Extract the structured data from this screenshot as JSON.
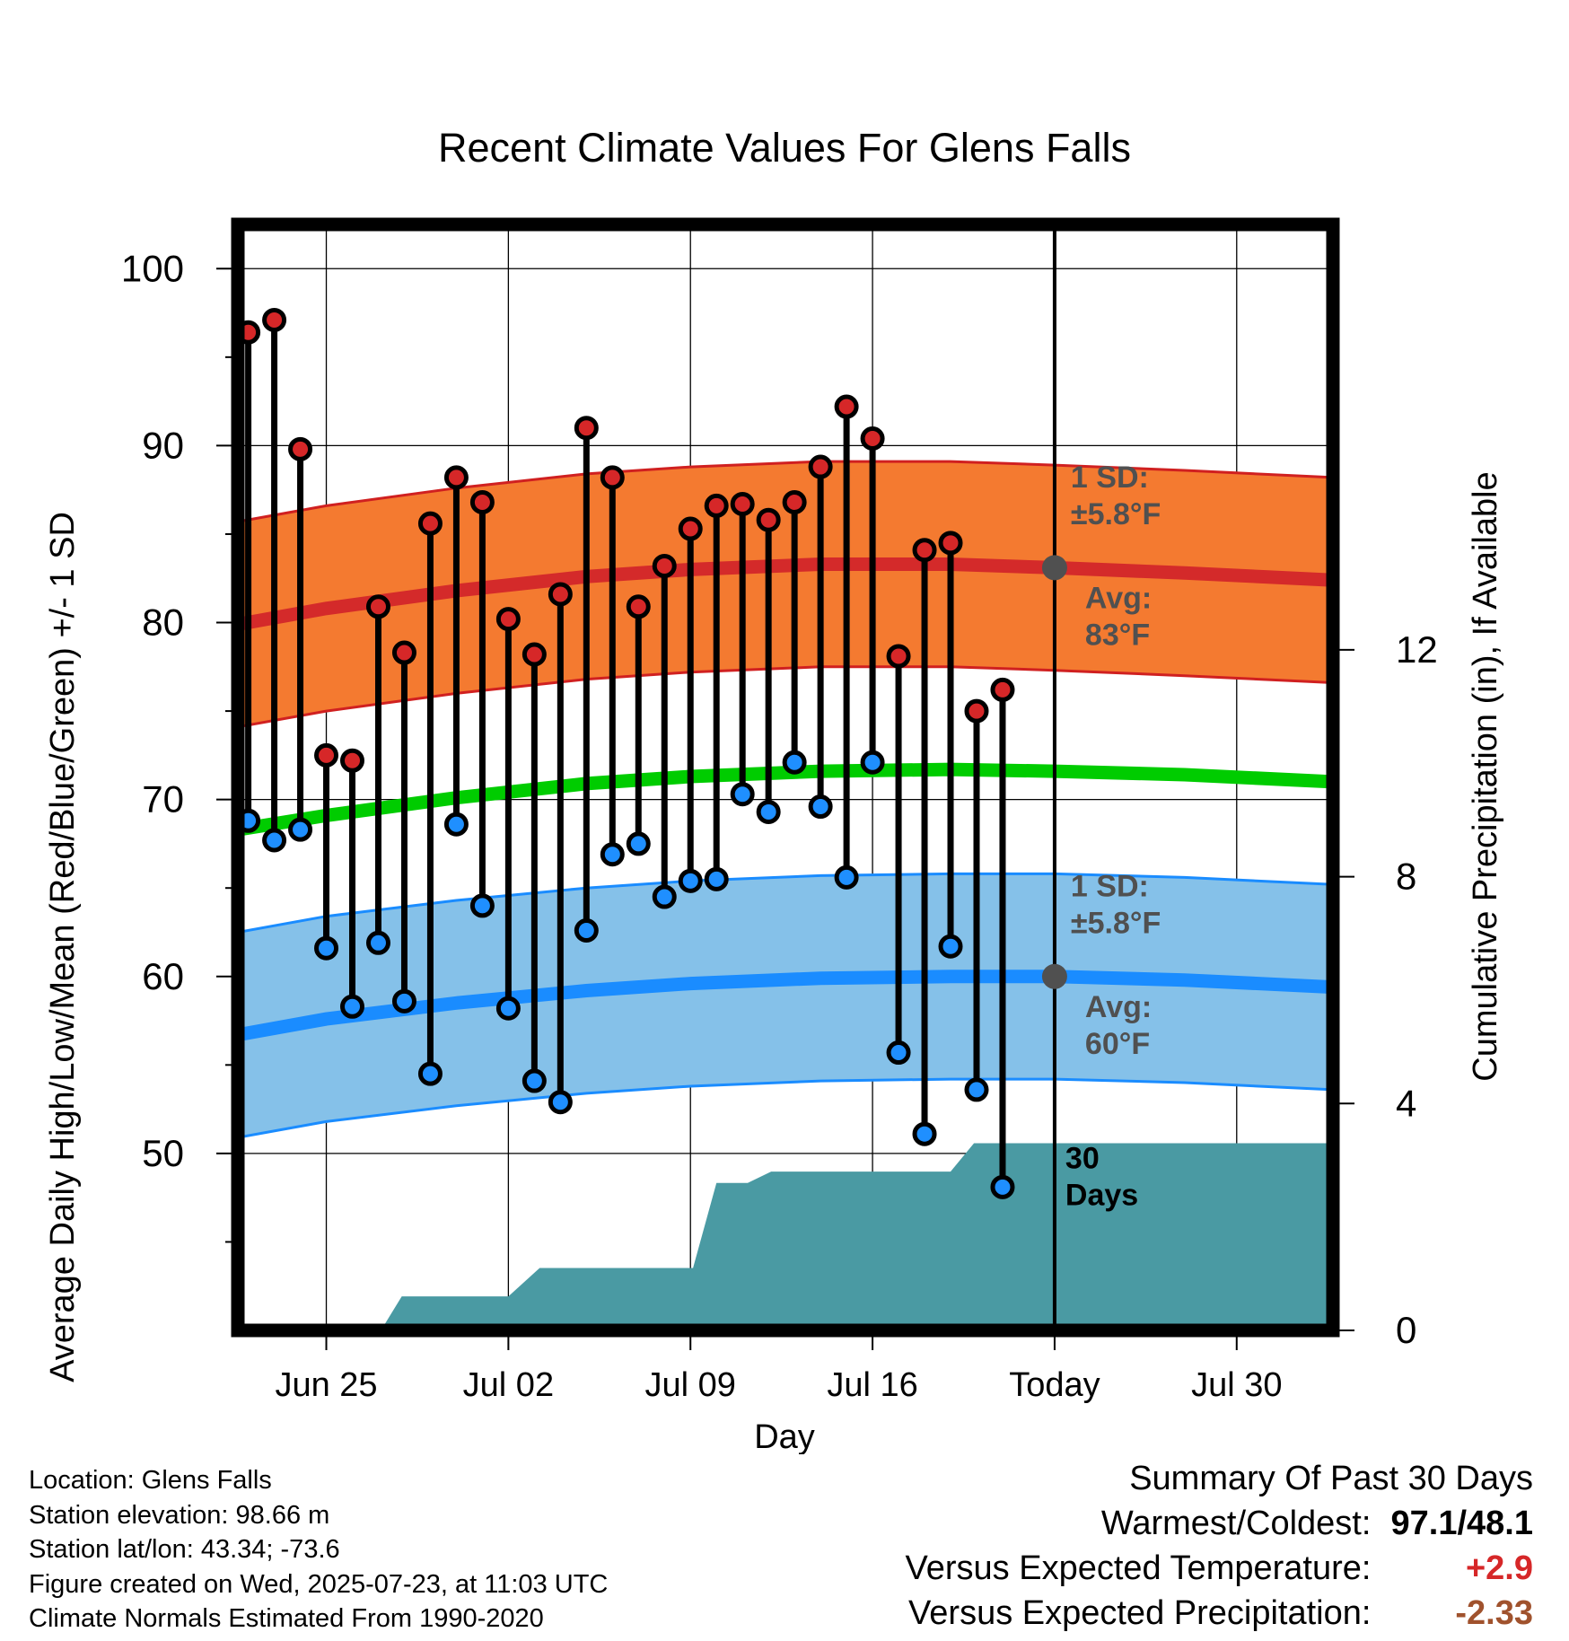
{
  "chart_data": {
    "type": "line",
    "title": "Recent Climate Values For Glens Falls",
    "xlabel": "Day",
    "ylabel_left": "Average Daily High/Low/Mean (Red/Blue/Green) +/- 1 SD",
    "ylabel_right": "Cumulative Precipitation (in), If Available",
    "x_ticks": [
      {
        "date": "2025-06-25",
        "label": "Jun 25"
      },
      {
        "date": "2025-07-02",
        "label": "Jul 02"
      },
      {
        "date": "2025-07-09",
        "label": "Jul 09"
      },
      {
        "date": "2025-07-16",
        "label": "Jul 16"
      },
      {
        "date": "2025-07-23",
        "label": "Today"
      },
      {
        "date": "2025-07-30",
        "label": "Jul 30"
      }
    ],
    "xlim": [
      "2025-06-21.6",
      "2025-08-02.7"
    ],
    "ylim_left": [
      40,
      102.5
    ],
    "y_ticks_left": [
      "50",
      "60",
      "70",
      "80",
      "90",
      "100"
    ],
    "ylim_right": [
      0,
      19.5
    ],
    "y_ticks_right": [
      "0",
      "4",
      "8",
      "12"
    ],
    "grid": true,
    "today": "2025-07-23",
    "observations": {
      "dates": [
        "2025-06-22",
        "2025-06-23",
        "2025-06-24",
        "2025-06-25",
        "2025-06-26",
        "2025-06-27",
        "2025-06-28",
        "2025-06-29",
        "2025-06-30",
        "2025-07-01",
        "2025-07-02",
        "2025-07-03",
        "2025-07-04",
        "2025-07-05",
        "2025-07-06",
        "2025-07-07",
        "2025-07-08",
        "2025-07-09",
        "2025-07-10",
        "2025-07-11",
        "2025-07-12",
        "2025-07-13",
        "2025-07-14",
        "2025-07-15",
        "2025-07-16",
        "2025-07-17",
        "2025-07-18",
        "2025-07-19",
        "2025-07-20",
        "2025-07-21",
        "2025-07-22"
      ],
      "high": [
        96.4,
        97.1,
        89.8,
        72.5,
        72.2,
        80.9,
        78.3,
        85.6,
        88.2,
        86.8,
        80.2,
        78.2,
        81.6,
        91.0,
        88.2,
        80.9,
        83.2,
        85.3,
        86.6,
        86.7,
        85.8,
        86.8,
        88.8,
        92.2,
        90.4,
        78.1,
        84.1,
        84.5,
        75.0,
        76.2,
        null
      ],
      "low": [
        68.8,
        67.7,
        68.3,
        61.6,
        58.3,
        61.9,
        58.6,
        54.5,
        68.6,
        64.0,
        58.2,
        54.1,
        52.9,
        62.6,
        66.9,
        67.5,
        64.5,
        65.4,
        65.5,
        70.3,
        69.3,
        72.1,
        69.6,
        65.6,
        72.1,
        55.7,
        51.1,
        61.7,
        53.6,
        48.1,
        null
      ]
    },
    "normals": {
      "dates": [
        "2025-06-21.6",
        "2025-06-25",
        "2025-06-30",
        "2025-07-05",
        "2025-07-09",
        "2025-07-14",
        "2025-07-19",
        "2025-07-23",
        "2025-07-28",
        "2025-08-02.7"
      ],
      "avg_high": [
        79.9,
        80.8,
        81.8,
        82.6,
        83.0,
        83.3,
        83.3,
        83.1,
        82.8,
        82.4
      ],
      "avg_low": [
        56.7,
        57.6,
        58.5,
        59.2,
        59.6,
        59.9,
        60.0,
        60.0,
        59.8,
        59.4
      ],
      "avg_mean": [
        68.3,
        69.1,
        70.1,
        70.9,
        71.3,
        71.6,
        71.7,
        71.6,
        71.4,
        71.0
      ],
      "sd_high": 5.8,
      "sd_low": 5.8
    },
    "precipitation": {
      "dates": [
        "2025-06-21.6",
        "2025-06-27.1",
        "2025-06-27.9",
        "2025-07-02",
        "2025-07-03.2",
        "2025-07-09.1",
        "2025-07-10",
        "2025-07-11.2",
        "2025-07-12.1",
        "2025-07-16",
        "2025-07-19",
        "2025-07-19.9",
        "2025-07-23",
        "2025-08-02.7"
      ],
      "cumulative": [
        0,
        0,
        0.6,
        0.6,
        1.1,
        1.1,
        2.6,
        2.6,
        2.8,
        2.8,
        2.8,
        3.3,
        3.3,
        3.3
      ]
    },
    "annotations": {
      "high_sd_label": [
        "1 SD:",
        "±5.8°F"
      ],
      "high_avg_label": [
        "Avg:",
        "83°F"
      ],
      "low_sd_label": [
        "1 SD:",
        "±5.8°F"
      ],
      "low_avg_label": [
        "Avg:",
        "60°F"
      ],
      "precip_label": [
        "30",
        "Days"
      ]
    },
    "colors": {
      "high_band": "#f47a30",
      "high_edge": "#d02020",
      "high_line": "#d42a2a",
      "low_band": "#85c1e9",
      "low_edge": "#1a8cff",
      "low_line": "#1a8cff",
      "mean_line": "#00cc00",
      "precip": "#4a9aa3",
      "high_point": "#d62728",
      "low_point": "#1f8fff",
      "annotation": "#505050"
    }
  },
  "footer": {
    "location": "Location: Glens Falls",
    "elevation": "Station elevation: 98.66 m",
    "latlon": "Station lat/lon: 43.34; -73.6",
    "created": "Figure created on Wed, 2025-07-23, at 11:03 UTC",
    "normals": "Climate Normals Estimated From 1990-2020"
  },
  "summary": {
    "heading": "Summary Of Past 30 Days",
    "warm_cold_label": "Warmest/Coldest:",
    "warm_cold_value": "97.1/48.1",
    "temp_label": "Versus Expected Temperature:",
    "temp_value": "+2.9",
    "temp_color": "#d62728",
    "precip_label": "Versus Expected Precipitation:",
    "precip_value": "-2.33",
    "precip_color": "#a0522d"
  }
}
